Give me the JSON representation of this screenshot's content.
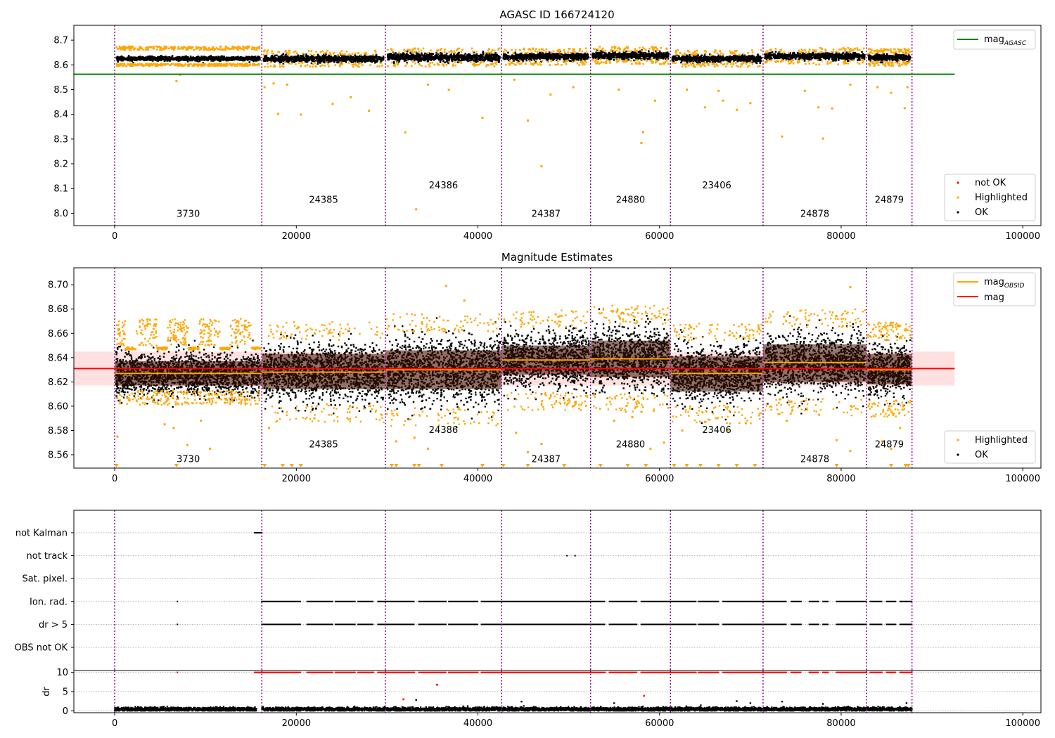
{
  "figure_title": "AGASC ID 166724120",
  "colors": {
    "ok": "#000000",
    "highlighted": "#ffa500",
    "not_ok": "#ff0000",
    "mag_agasc": "#008000",
    "mag_obsid": "#ffa500",
    "mag": "#ff0000",
    "band": "#ffcccc",
    "obs_boundary": "#800080",
    "band_dark": "#3a1000"
  },
  "chart_data": [
    {
      "type": "scatter",
      "title": "AGASC ID 166724120",
      "xlim": [
        -4500,
        102000
      ],
      "ylim": [
        7.95,
        8.76
      ],
      "xticks": [
        0,
        20000,
        40000,
        60000,
        80000,
        100000
      ],
      "yticks": [
        8.0,
        8.1,
        8.2,
        8.3,
        8.4,
        8.5,
        8.6,
        8.7
      ],
      "ytick_labels": [
        "8.0",
        "8.1",
        "8.2",
        "8.3",
        "8.4",
        "8.5",
        "8.6",
        "8.7"
      ],
      "mag_agasc": 8.562,
      "mag_agasc_xrange": [
        -4500,
        92500
      ],
      "obs_boundaries": [
        0,
        16200,
        29800,
        42600,
        52400,
        61200,
        71400,
        82800,
        87800
      ],
      "observations": [
        {
          "obsid": "3730",
          "x_range": [
            0,
            16200
          ],
          "mean": 8.625,
          "spread": 0.01,
          "label_x": 8100,
          "label_y": 7.985
        },
        {
          "obsid": "24385",
          "x_range": [
            16200,
            29800
          ],
          "mean": 8.625,
          "spread": 0.012,
          "label_x": 23000,
          "label_y": 8.043
        },
        {
          "obsid": "24386",
          "x_range": [
            29800,
            42600
          ],
          "mean": 8.63,
          "spread": 0.014,
          "label_x": 36200,
          "label_y": 8.1
        },
        {
          "obsid": "24387",
          "x_range": [
            42600,
            52400
          ],
          "mean": 8.633,
          "spread": 0.012,
          "label_x": 47500,
          "label_y": 7.985
        },
        {
          "obsid": "24880",
          "x_range": [
            52400,
            61200
          ],
          "mean": 8.638,
          "spread": 0.013,
          "label_x": 56800,
          "label_y": 8.043
        },
        {
          "obsid": "23406",
          "x_range": [
            61200,
            71400
          ],
          "mean": 8.625,
          "spread": 0.012,
          "label_x": 66300,
          "label_y": 8.1
        },
        {
          "obsid": "24878",
          "x_range": [
            71400,
            82800
          ],
          "mean": 8.635,
          "spread": 0.012,
          "label_x": 77100,
          "label_y": 7.985
        },
        {
          "obsid": "24879",
          "x_range": [
            82800,
            87800
          ],
          "mean": 8.63,
          "spread": 0.012,
          "label_x": 85300,
          "label_y": 8.043
        }
      ],
      "highlighted_outliers": [
        [
          18000,
          8.402
        ],
        [
          20500,
          8.399
        ],
        [
          24000,
          8.442
        ],
        [
          26000,
          8.469
        ],
        [
          28000,
          8.414
        ],
        [
          32000,
          8.327
        ],
        [
          33200,
          8.016
        ],
        [
          34500,
          8.52
        ],
        [
          36800,
          8.499
        ],
        [
          40500,
          8.386
        ],
        [
          44000,
          8.54
        ],
        [
          45500,
          8.375
        ],
        [
          47000,
          8.19
        ],
        [
          48000,
          8.48
        ],
        [
          50500,
          8.51
        ],
        [
          55500,
          8.5
        ],
        [
          58000,
          8.284
        ],
        [
          58200,
          8.328
        ],
        [
          59500,
          8.455
        ],
        [
          63000,
          8.5
        ],
        [
          65000,
          8.428
        ],
        [
          66500,
          8.495
        ],
        [
          67000,
          8.455
        ],
        [
          68500,
          8.418
        ],
        [
          70000,
          8.445
        ],
        [
          73500,
          8.31
        ],
        [
          76000,
          8.495
        ],
        [
          77500,
          8.428
        ],
        [
          78000,
          8.302
        ],
        [
          79000,
          8.424
        ],
        [
          81000,
          8.52
        ],
        [
          84000,
          8.51
        ],
        [
          85500,
          8.487
        ],
        [
          87000,
          8.425
        ],
        [
          87300,
          8.51
        ],
        [
          6800,
          8.535
        ],
        [
          7200,
          8.56
        ],
        [
          16500,
          8.51
        ],
        [
          17500,
          8.525
        ],
        [
          19000,
          8.52
        ]
      ],
      "legend_line": {
        "label": "mag",
        "subscript": "AGASC",
        "position": "top-right"
      },
      "legend_points": [
        {
          "label": "not OK",
          "color": "#ff0000"
        },
        {
          "label": "Highlighted",
          "color": "#ffa500"
        },
        {
          "label": "OK",
          "color": "#000000"
        }
      ],
      "legend_points_position": "bottom-right"
    },
    {
      "type": "scatter",
      "title": "Magnitude Estimates",
      "xlim": [
        -4500,
        102000
      ],
      "ylim": [
        8.549,
        8.714
      ],
      "xticks": [
        0,
        20000,
        40000,
        60000,
        80000,
        100000
      ],
      "yticks": [
        8.56,
        8.58,
        8.6,
        8.62,
        8.64,
        8.66,
        8.68,
        8.7
      ],
      "ytick_labels": [
        "8.56",
        "8.58",
        "8.60",
        "8.62",
        "8.64",
        "8.66",
        "8.68",
        "8.70"
      ],
      "mag": 8.631,
      "mag_band": [
        8.617,
        8.645
      ],
      "mag_xrange": [
        -4500,
        92500
      ],
      "obsid_means": [
        {
          "obsid": "3730",
          "x_range": [
            0,
            16200
          ],
          "mean": 8.627,
          "spread": 0.0085,
          "band": [
            8.617,
            8.637
          ],
          "label_x": 8100,
          "label_y": 8.554
        },
        {
          "obsid": "24385",
          "x_range": [
            16200,
            29800
          ],
          "mean": 8.628,
          "spread": 0.011,
          "band": [
            8.614,
            8.643
          ],
          "label_x": 23000,
          "label_y": 8.566
        },
        {
          "obsid": "24386",
          "x_range": [
            29800,
            42600
          ],
          "mean": 8.63,
          "spread": 0.013,
          "band": [
            8.614,
            8.646
          ],
          "label_x": 36200,
          "label_y": 8.578
        },
        {
          "obsid": "24387",
          "x_range": [
            42600,
            52400
          ],
          "mean": 8.638,
          "spread": 0.011,
          "band": [
            8.626,
            8.65
          ],
          "label_x": 47500,
          "label_y": 8.554
        },
        {
          "obsid": "24880",
          "x_range": [
            52400,
            61200
          ],
          "mean": 8.639,
          "spread": 0.012,
          "band": [
            8.624,
            8.654
          ],
          "label_x": 56800,
          "label_y": 8.566
        },
        {
          "obsid": "23406",
          "x_range": [
            61200,
            71400
          ],
          "mean": 8.627,
          "spread": 0.011,
          "band": [
            8.612,
            8.641
          ],
          "label_x": 66300,
          "label_y": 8.578
        },
        {
          "obsid": "24878",
          "x_range": [
            71400,
            82800
          ],
          "mean": 8.636,
          "spread": 0.012,
          "band": [
            8.62,
            8.651
          ],
          "label_x": 77100,
          "label_y": 8.554
        },
        {
          "obsid": "24879",
          "x_range": [
            82800,
            87800
          ],
          "mean": 8.63,
          "spread": 0.01,
          "band": [
            8.618,
            8.643
          ],
          "label_x": 85300,
          "label_y": 8.566
        }
      ],
      "highlighted_outliers": [
        [
          300,
          8.575
        ],
        [
          5500,
          8.585
        ],
        [
          6500,
          8.582
        ],
        [
          8000,
          8.568
        ],
        [
          9500,
          8.588
        ],
        [
          10500,
          8.565
        ],
        [
          17000,
          8.582
        ],
        [
          22000,
          8.59
        ],
        [
          31000,
          8.571
        ],
        [
          33000,
          8.574
        ],
        [
          34500,
          8.565
        ],
        [
          36500,
          8.699
        ],
        [
          38500,
          8.687
        ],
        [
          44200,
          8.578
        ],
        [
          45500,
          8.562
        ],
        [
          47000,
          8.569
        ],
        [
          50500,
          8.6
        ],
        [
          55000,
          8.588
        ],
        [
          57000,
          8.591
        ],
        [
          59000,
          8.565
        ],
        [
          60500,
          8.57
        ],
        [
          62500,
          8.58
        ],
        [
          65000,
          8.587
        ],
        [
          67500,
          8.58
        ],
        [
          69500,
          8.586
        ],
        [
          74000,
          8.588
        ],
        [
          79500,
          8.572
        ],
        [
          81000,
          8.563
        ],
        [
          84500,
          8.571
        ],
        [
          85500,
          8.565
        ],
        [
          86500,
          8.582
        ],
        [
          81000,
          8.698
        ]
      ],
      "clipped_low_markers": [
        200,
        6800,
        16500,
        18500,
        19500,
        20500,
        30500,
        31000,
        33000,
        33500,
        36000,
        40500,
        42800,
        45500,
        49500,
        53500,
        56500,
        58500,
        61600,
        63000,
        64500,
        66500,
        68500,
        70500,
        79500,
        85500,
        87100,
        87400
      ],
      "legend_line": [
        {
          "label": "mag",
          "subscript": "OBSID",
          "color": "#ffa500"
        },
        {
          "label": "mag",
          "subscript": "",
          "color": "#ff0000"
        }
      ],
      "legend_points": [
        {
          "label": "Highlighted",
          "color": "#ffa500"
        },
        {
          "label": "OK",
          "color": "#000000"
        }
      ],
      "legend_line_position": "top-right",
      "legend_points_position": "bottom-right"
    },
    {
      "type": "scatter",
      "title": "",
      "xlim": [
        -4500,
        102000
      ],
      "categories": [
        "not Kalman",
        "not track",
        "Sat. pixel.",
        "Ion. rad.",
        "dr > 5",
        "OBS not OK"
      ],
      "flag_rows": [
        {
          "flag": "not Kalman",
          "segments": [
            [
              15400,
              16200
            ]
          ],
          "points": []
        },
        {
          "flag": "not track",
          "segments": [],
          "points": [
            49800,
            50700
          ]
        },
        {
          "flag": "Sat. pixel.",
          "segments": [],
          "points": []
        },
        {
          "flag": "Ion. rad.",
          "segments": [
            [
              16200,
              20500
            ],
            [
              21200,
              24000
            ],
            [
              24300,
              26500
            ],
            [
              26800,
              28500
            ],
            [
              29000,
              29800
            ],
            [
              29800,
              33000
            ],
            [
              33500,
              36500
            ],
            [
              36800,
              40000
            ],
            [
              40400,
              42600
            ],
            [
              42600,
              52400
            ],
            [
              52400,
              54000
            ],
            [
              54500,
              57500
            ],
            [
              58000,
              61200
            ],
            [
              61200,
              64000
            ],
            [
              64300,
              66500
            ],
            [
              67000,
              71400
            ],
            [
              71400,
              74000
            ],
            [
              74500,
              75600
            ],
            [
              76500,
              77500
            ],
            [
              78000,
              78600
            ],
            [
              79500,
              82800
            ],
            [
              83200,
              84500
            ],
            [
              85000,
              86000
            ],
            [
              86500,
              87800
            ]
          ],
          "points": [
            6900
          ]
        },
        {
          "flag": "dr > 5",
          "segments": [
            [
              16200,
              20500
            ],
            [
              21200,
              24000
            ],
            [
              24300,
              26500
            ],
            [
              26800,
              28500
            ],
            [
              29000,
              29800
            ],
            [
              29800,
              33000
            ],
            [
              33500,
              36500
            ],
            [
              36800,
              40000
            ],
            [
              40400,
              42600
            ],
            [
              42600,
              52400
            ],
            [
              52400,
              54000
            ],
            [
              54500,
              57500
            ],
            [
              58000,
              61200
            ],
            [
              61200,
              64000
            ],
            [
              64300,
              66500
            ],
            [
              67000,
              71400
            ],
            [
              71400,
              74000
            ],
            [
              74500,
              75600
            ],
            [
              76500,
              77500
            ],
            [
              78000,
              78600
            ],
            [
              79500,
              82800
            ],
            [
              83200,
              84500
            ],
            [
              85000,
              86000
            ],
            [
              86500,
              87800
            ]
          ],
          "points": [
            6900
          ]
        },
        {
          "flag": "OBS not OK",
          "segments": [],
          "points": []
        }
      ]
    },
    {
      "type": "scatter",
      "title": "",
      "ylabel": "dr",
      "xlim": [
        -4500,
        102000
      ],
      "ylim": [
        -0.5,
        10.5
      ],
      "xticks": [
        0,
        20000,
        40000,
        60000,
        80000,
        100000
      ],
      "yticks": [
        0,
        5,
        10
      ],
      "dr_clipped_value": 10,
      "dr_clipped_segments": [
        [
          15400,
          16200
        ],
        [
          16200,
          20500
        ],
        [
          21200,
          24000
        ],
        [
          24300,
          26500
        ],
        [
          26800,
          28500
        ],
        [
          29000,
          29800
        ],
        [
          29800,
          33000
        ],
        [
          33500,
          36500
        ],
        [
          36800,
          40000
        ],
        [
          40400,
          42600
        ],
        [
          42600,
          52400
        ],
        [
          52400,
          54000
        ],
        [
          54500,
          57500
        ],
        [
          58000,
          61200
        ],
        [
          61200,
          64000
        ],
        [
          64300,
          66500
        ],
        [
          67000,
          71400
        ],
        [
          71400,
          74000
        ],
        [
          74500,
          75600
        ],
        [
          76500,
          77500
        ],
        [
          78000,
          78600
        ],
        [
          79500,
          82800
        ],
        [
          83200,
          84500
        ],
        [
          85000,
          86000
        ],
        [
          86500,
          87800
        ]
      ],
      "dr_clipped_points": [
        6900
      ],
      "dr_outliers_red": [
        [
          35500,
          6.8
        ],
        [
          31800,
          3.0
        ],
        [
          58300,
          3.9
        ]
      ],
      "dr_outliers_black": [
        [
          33200,
          2.8
        ],
        [
          44800,
          2.4
        ],
        [
          55000,
          2.0
        ],
        [
          68500,
          2.5
        ],
        [
          70000,
          2.0
        ],
        [
          73500,
          2.4
        ],
        [
          78000,
          1.8
        ],
        [
          87200,
          2.0
        ]
      ],
      "dr_baseline": [
        [
          0,
          15600
        ],
        [
          16200,
          87800
        ]
      ],
      "dr_baseline_level": 0.4
    }
  ],
  "x_tick_labels": [
    "0",
    "20000",
    "40000",
    "60000",
    "80000",
    "100000"
  ]
}
